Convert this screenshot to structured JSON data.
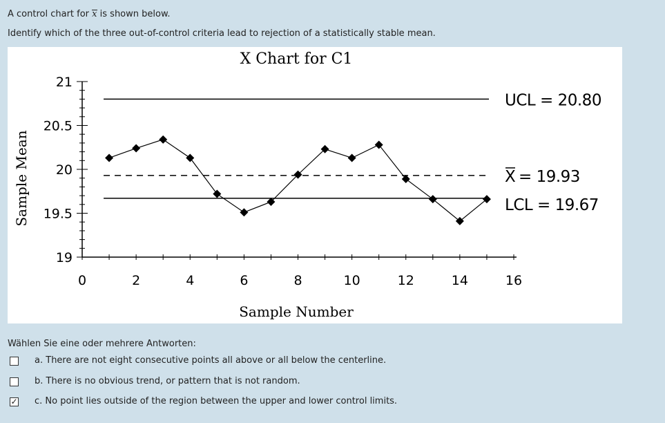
{
  "question": {
    "line1_prefix": "A control chart for",
    "line1_symbol": "x",
    "line1_suffix": "is shown below.",
    "line2": "Identify which of the three out-of-control criteria lead to rejection of a statistically stable mean."
  },
  "chart_data": {
    "type": "line",
    "title": "X Chart for C1",
    "xlabel": "Sample Number",
    "ylabel": "Sample Mean",
    "xlim": [
      0,
      16
    ],
    "ylim": [
      19,
      21
    ],
    "x_ticks": [
      "0",
      "2",
      "4",
      "6",
      "8",
      "10",
      "12",
      "14",
      "16"
    ],
    "y_ticks": [
      "19",
      "19.5",
      "20",
      "20.5",
      "21"
    ],
    "x": [
      1,
      2,
      3,
      4,
      5,
      6,
      7,
      8,
      9,
      10,
      11,
      12,
      13,
      14,
      15
    ],
    "values": [
      20.13,
      20.24,
      20.34,
      20.13,
      19.72,
      19.51,
      19.63,
      19.94,
      20.23,
      20.13,
      20.28,
      19.89,
      19.66,
      19.41,
      19.66
    ],
    "ucl": {
      "value": 20.8,
      "label": "UCL = 20.80"
    },
    "center": {
      "value": 19.93,
      "label_symbol": "X",
      "label_text": "= 19.93"
    },
    "lcl": {
      "value": 19.67,
      "label": "LCL = 19.67"
    },
    "grid": false,
    "colors": {
      "line": "#000000",
      "marker": "#000000"
    }
  },
  "answers": {
    "prompt": "Wählen Sie eine oder mehrere Antworten:",
    "check_glyph": "✓",
    "options": [
      {
        "letter": "a.",
        "text": "There are not eight consecutive points all above or all below the centerline.",
        "checked": false
      },
      {
        "letter": "b.",
        "text": "There is no obvious trend, or pattern that is not random.",
        "checked": false
      },
      {
        "letter": "c.",
        "text": "No point lies outside of the region between the upper and lower control limits.",
        "checked": true
      }
    ]
  },
  "colors": {
    "panel_bg": "#cfe0ea",
    "chart_bg": "#ffffff",
    "text": "#222222"
  }
}
